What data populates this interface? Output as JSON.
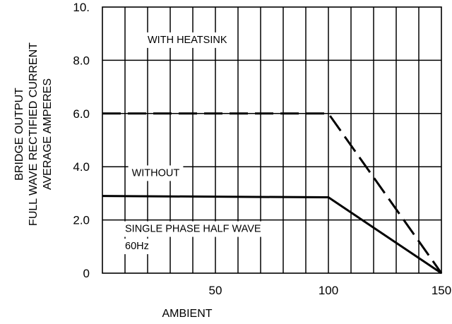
{
  "chart_data": {
    "type": "line",
    "ylabel_lines": [
      "BRIDGE OUTPUT",
      "FULL WAVE RECTIFIED CURRENT",
      "AVERAGE AMPERES"
    ],
    "xlabel": "AMBIENT",
    "xlim": [
      0,
      150
    ],
    "ylim": [
      0,
      10
    ],
    "x_ticks": [
      {
        "value": 50,
        "label": "50"
      },
      {
        "value": 100,
        "label": "100"
      },
      {
        "value": 150,
        "label": "150"
      }
    ],
    "y_ticks": [
      {
        "value": 0,
        "label": "0"
      },
      {
        "value": 2,
        "label": "2.0"
      },
      {
        "value": 4,
        "label": "4.0"
      },
      {
        "value": 6,
        "label": "6.0"
      },
      {
        "value": 8,
        "label": "8.0"
      },
      {
        "value": 10,
        "label": "10."
      }
    ],
    "vertical_grid_step": 10,
    "horizontal_grid_step": 2,
    "grid": true,
    "series": [
      {
        "name": "WITH HEATSINK",
        "style": "dashed",
        "x": [
          0,
          100,
          150
        ],
        "y": [
          6.0,
          6.0,
          0
        ]
      },
      {
        "name": "WITHOUT",
        "style": "solid",
        "x": [
          0,
          100,
          150
        ],
        "y": [
          2.9,
          2.85,
          0
        ]
      }
    ],
    "annotations": [
      {
        "text": "WITH  HEATSINK",
        "x": 20,
        "y": 8.65
      },
      {
        "text": "WITHOUT",
        "x": 13,
        "y": 3.65
      },
      {
        "text": "SINGLE PHASE HALF WAVE",
        "x": 10,
        "y": 1.55
      },
      {
        "text": "60Hz",
        "x": 10,
        "y": 0.9
      }
    ],
    "colors": {
      "line": "#000000",
      "background": "#ffffff"
    }
  }
}
